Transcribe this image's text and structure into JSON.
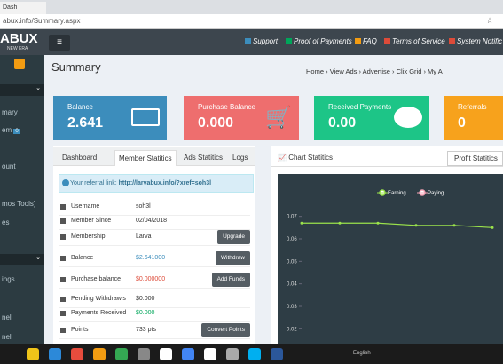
{
  "browser": {
    "tab": "Dash",
    "url": "abux.info/Summary.aspx"
  },
  "header": {
    "logo": "ABUX",
    "tagline": "NEW ERA",
    "nav": [
      "Support",
      "Proof of Payments",
      "FAQ",
      "Terms of Service",
      "System Notific"
    ]
  },
  "sidebar": {
    "items": [
      "mary",
      "em",
      "ount",
      "mos Tools)",
      "es",
      "ings",
      "nel",
      "nel"
    ],
    "badge": "0"
  },
  "page": {
    "title": "Summary",
    "breadcrumb": [
      "Home",
      "View Ads",
      "Advertise",
      "Clix Grid",
      "My A"
    ]
  },
  "cards": [
    {
      "label": "Balance",
      "value": "2.641"
    },
    {
      "label": "Purchase Balance",
      "value": "0.000"
    },
    {
      "label": "Received Payments",
      "value": "0.00"
    },
    {
      "label": "Referrals",
      "value": "0"
    }
  ],
  "stats": {
    "tabs": [
      "Dashboard",
      "Member Statitics",
      "Ads Statitics",
      "Logs"
    ],
    "referral_label": "Your referral link:",
    "referral_link": "http://larvabux.info/?xref=soh3l",
    "rows": [
      {
        "label": "Username",
        "value": "soh3l"
      },
      {
        "label": "Member Since",
        "value": "02/04/2018"
      },
      {
        "label": "Membership",
        "value": "Larva",
        "button": "Upgrade"
      },
      {
        "label": "Balance",
        "value": "$2.641000",
        "button": "Withdraw"
      },
      {
        "label": "Purchase balance",
        "value": "$0.000000",
        "button": "Add Funds"
      },
      {
        "label": "Pending Withdrawls",
        "value": "$0.000"
      },
      {
        "label": "Payments Received",
        "value": "$0.000"
      },
      {
        "label": "Points",
        "value": "733 pts",
        "button": "Convert Points"
      }
    ]
  },
  "chart_panel": {
    "title": "Chart Statitics",
    "button": "Profit Statitics"
  },
  "chart_data": {
    "type": "line",
    "categories": [
      null,
      null,
      null,
      null,
      null,
      null
    ],
    "series": [
      {
        "name": "Earning",
        "color": "#9be34b",
        "values": [
          0.067,
          0.067,
          0.067,
          0.066,
          0.066,
          0.065
        ]
      },
      {
        "name": "Paying",
        "color": "#f5a3b5",
        "values": [
          null,
          null,
          null,
          null,
          null,
          null
        ]
      }
    ],
    "ylim": [
      0.015,
      0.075
    ],
    "yticks": [
      0.02,
      0.03,
      0.04,
      0.05,
      0.06,
      0.07
    ]
  },
  "taskbar": {
    "language": "English"
  }
}
